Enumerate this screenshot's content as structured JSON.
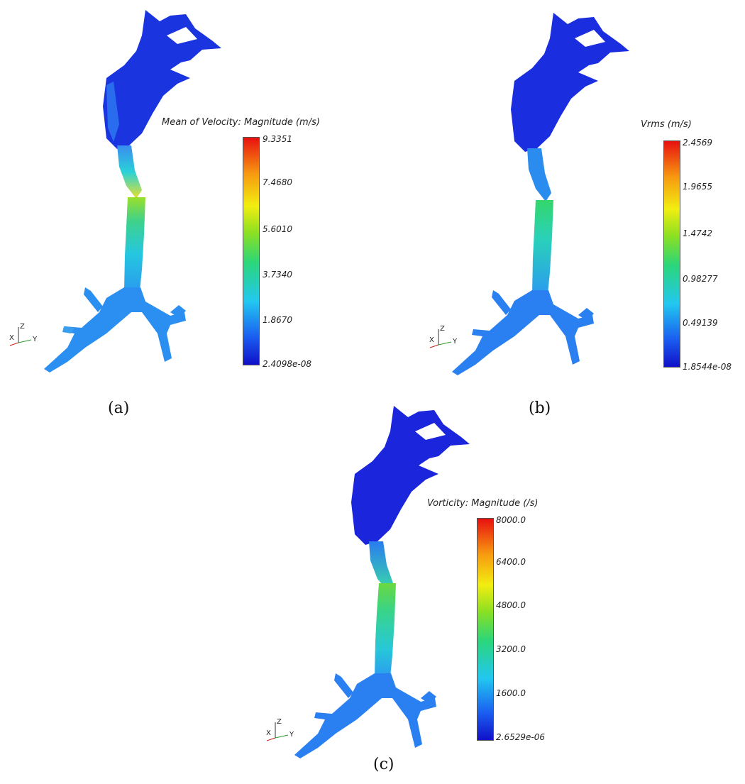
{
  "panels": [
    {
      "caption": "(a)",
      "colorbar_title": "Mean of Velocity: Magnitude (m/s)",
      "ticks": [
        "9.3351",
        "7.4680",
        "5.6010",
        "3.7340",
        "1.8670",
        "2.4098e-08"
      ]
    },
    {
      "caption": "(b)",
      "colorbar_title": "Vrms (m/s)",
      "ticks": [
        "2.4569",
        "1.9655",
        "1.4742",
        "0.98277",
        "0.49139",
        "1.8544e-08"
      ]
    },
    {
      "caption": "(c)",
      "colorbar_title": "Vorticity: Magnitude (/s)",
      "ticks": [
        "8000.0",
        "6400.0",
        "4800.0",
        "3200.0",
        "1600.0",
        "2.6529e-06"
      ]
    }
  ],
  "axes_labels": {
    "z": "Z",
    "x": "X",
    "y": "Y"
  },
  "colors": {
    "low": "#1010c8",
    "mid": "#2bd67a",
    "high": "#e81010"
  },
  "icons": [
    "airway-geometry",
    "axes-triad-icon",
    "colorbar-legend"
  ]
}
